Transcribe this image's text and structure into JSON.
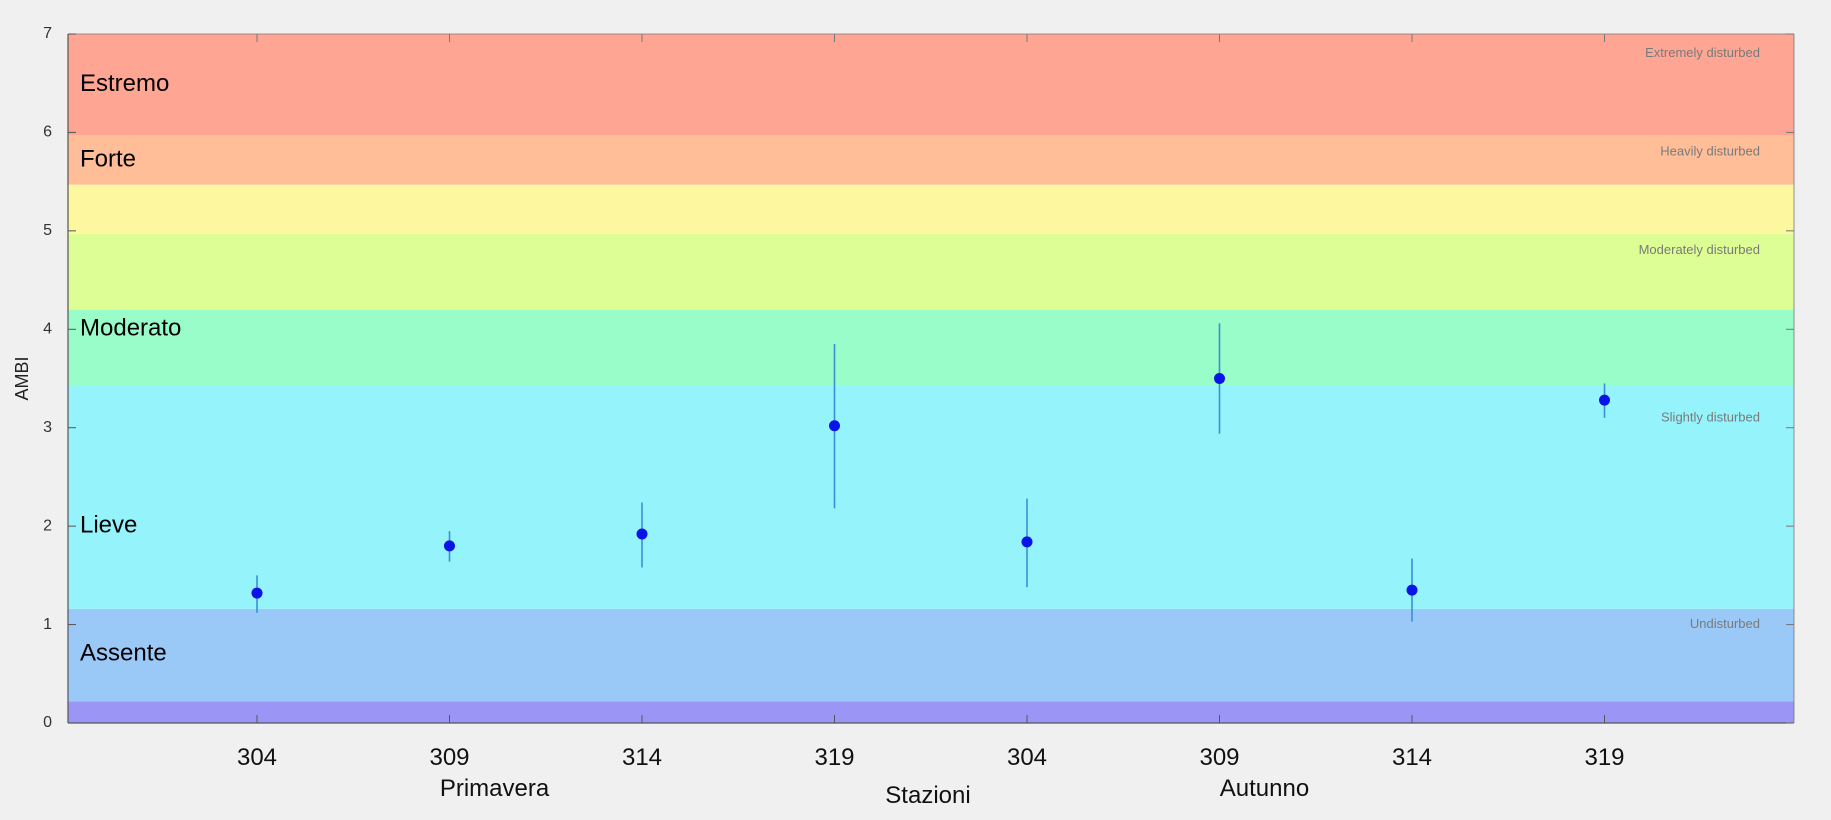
{
  "chart_data": {
    "type": "scatter",
    "title": "",
    "xlabel": "Stazioni",
    "ylabel": "AMBI",
    "ylim": [
      0,
      7
    ],
    "yticks": [
      0,
      1,
      2,
      3,
      4,
      5,
      6,
      7
    ],
    "grid": false,
    "categories": [
      "304",
      "309",
      "314",
      "319",
      "304",
      "309",
      "314",
      "319"
    ],
    "group_labels": [
      {
        "text": "Primavera",
        "center_index": 1
      },
      {
        "text": "Autunno",
        "center_index": 5
      }
    ],
    "series": [
      {
        "name": "",
        "color": "#0a14e6",
        "errorbar_color": "#3b8fd6",
        "values": [
          1.32,
          1.8,
          1.92,
          3.02,
          1.84,
          3.5,
          1.35,
          3.28
        ],
        "error_low": [
          1.12,
          1.64,
          1.58,
          2.18,
          1.38,
          2.94,
          1.03,
          3.1
        ],
        "error_high": [
          1.5,
          1.95,
          2.24,
          3.85,
          2.28,
          4.06,
          1.67,
          3.45
        ]
      }
    ],
    "bands": [
      {
        "from": 0,
        "to": 0.22,
        "color": "#9b96f5",
        "label": "",
        "en_label": ""
      },
      {
        "from": 0.22,
        "to": 1.16,
        "color": "#9ac8f7",
        "label": "Assente",
        "en_label": "Undisturbed"
      },
      {
        "from": 1.16,
        "to": 3.43,
        "color": "#94f3fb",
        "label": "Lieve",
        "en_label": "Slightly disturbed"
      },
      {
        "from": 3.43,
        "to": 4.2,
        "color": "#98fdc8",
        "label": "Moderato",
        "en_label": ""
      },
      {
        "from": 4.2,
        "to": 4.97,
        "color": "#dcfe94",
        "label": "",
        "en_label": "Moderately disturbed"
      },
      {
        "from": 4.97,
        "to": 5.47,
        "color": "#fdf7a0",
        "label": "",
        "en_label": ""
      },
      {
        "from": 5.47,
        "to": 5.97,
        "color": "#ffbd98",
        "label": "Forte",
        "en_label": "Heavily disturbed"
      },
      {
        "from": 5.97,
        "to": 7,
        "color": "#ffa594",
        "label": "Estremo",
        "en_label": "Extremely disturbed"
      }
    ]
  }
}
